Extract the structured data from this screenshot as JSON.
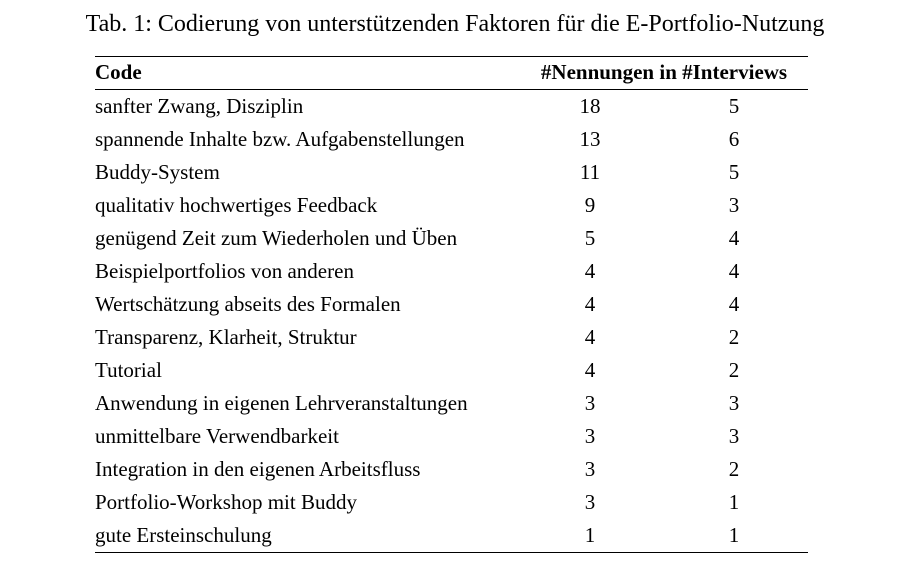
{
  "colors": {
    "background": "#ffffff",
    "text": "#000000",
    "rule": "#000000"
  },
  "caption": "Tab. 1: Codierung von unterstützenden Faktoren für die E-Portfolio-Nutzung",
  "table": {
    "col_header_code": "Code",
    "col_header_counts": "#Nennungen in #Interviews",
    "rows": [
      {
        "code": "sanfter Zwang, Disziplin",
        "nennungen": "18",
        "interviews": "5"
      },
      {
        "code": "spannende Inhalte bzw. Aufgabenstellungen",
        "nennungen": "13",
        "interviews": "6"
      },
      {
        "code": "Buddy-System",
        "nennungen": "11",
        "interviews": "5"
      },
      {
        "code": "qualitativ hochwertiges Feedback",
        "nennungen": "9",
        "interviews": "3"
      },
      {
        "code": "genügend Zeit zum Wiederholen und Üben",
        "nennungen": "5",
        "interviews": "4"
      },
      {
        "code": "Beispielportfolios von anderen",
        "nennungen": "4",
        "interviews": "4"
      },
      {
        "code": "Wertschätzung abseits des Formalen",
        "nennungen": "4",
        "interviews": "4"
      },
      {
        "code": "Transparenz, Klarheit, Struktur",
        "nennungen": "4",
        "interviews": "2"
      },
      {
        "code": "Tutorial",
        "nennungen": "4",
        "interviews": "2"
      },
      {
        "code": "Anwendung in eigenen Lehrveranstaltungen",
        "nennungen": "3",
        "interviews": "3"
      },
      {
        "code": "unmittelbare Verwendbarkeit",
        "nennungen": "3",
        "interviews": "3"
      },
      {
        "code": "Integration in den eigenen Arbeitsfluss",
        "nennungen": "3",
        "interviews": "2"
      },
      {
        "code": "Portfolio-Workshop mit Buddy",
        "nennungen": "3",
        "interviews": "1"
      },
      {
        "code": "gute Ersteinschulung",
        "nennungen": "1",
        "interviews": "1"
      }
    ]
  },
  "chart_data": {
    "type": "table",
    "title": "Tab. 1: Codierung von unterstützenden Faktoren für die E-Portfolio-Nutzung",
    "columns": [
      "Code",
      "#Nennungen",
      "#Interviews"
    ],
    "rows": [
      [
        "sanfter Zwang, Disziplin",
        18,
        5
      ],
      [
        "spannende Inhalte bzw. Aufgabenstellungen",
        13,
        6
      ],
      [
        "Buddy-System",
        11,
        5
      ],
      [
        "qualitativ hochwertiges Feedback",
        9,
        3
      ],
      [
        "genügend Zeit zum Wiederholen und Üben",
        5,
        4
      ],
      [
        "Beispielportfolios von anderen",
        4,
        4
      ],
      [
        "Wertschätzung abseits des Formalen",
        4,
        4
      ],
      [
        "Transparenz, Klarheit, Struktur",
        4,
        2
      ],
      [
        "Tutorial",
        4,
        2
      ],
      [
        "Anwendung in eigenen Lehrveranstaltungen",
        3,
        3
      ],
      [
        "unmittelbare Verwendbarkeit",
        3,
        3
      ],
      [
        "Integration in den eigenen Arbeitsfluss",
        3,
        2
      ],
      [
        "Portfolio-Workshop mit Buddy",
        3,
        1
      ],
      [
        "gute Ersteinschulung",
        1,
        1
      ]
    ]
  }
}
